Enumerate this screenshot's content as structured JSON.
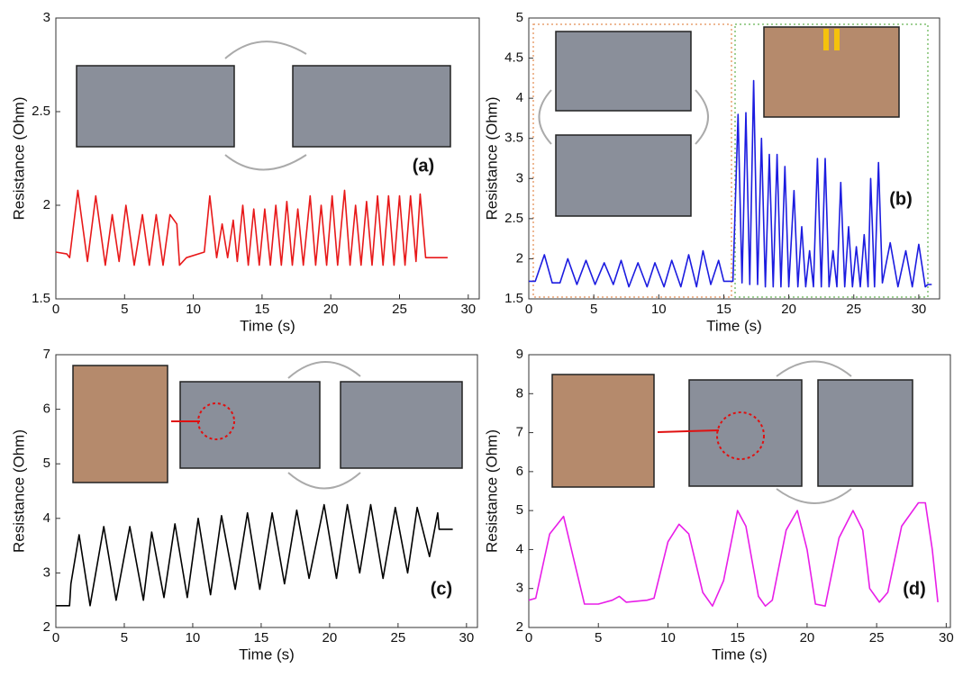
{
  "chart_data": [
    {
      "type": "line",
      "x_label": "Time (s)",
      "y_label": "Resistance (Ohm)",
      "annotation": "(a)",
      "grid": false,
      "xlim": [
        0,
        30.8
      ],
      "xticks": [
        0,
        5,
        10,
        15,
        20,
        25,
        30
      ],
      "ylim": [
        1.5,
        3
      ],
      "yticks": [
        1.5,
        2,
        2.5,
        3
      ],
      "series": [
        {
          "color": "#e8191a",
          "x": [
            0,
            0.8,
            1.0,
            1.6,
            2.3,
            2.9,
            3.6,
            4.1,
            4.6,
            5.1,
            5.7,
            6.3,
            6.8,
            7.3,
            7.8,
            8.3,
            8.8,
            9.0,
            9.5,
            10.8,
            11.2,
            11.7,
            12.1,
            12.5,
            12.9,
            13.2,
            13.6,
            14.0,
            14.4,
            14.8,
            15.2,
            15.6,
            16.0,
            16.4,
            16.8,
            17.2,
            17.6,
            18.0,
            18.5,
            18.9,
            19.3,
            19.7,
            20.1,
            20.5,
            21.0,
            21.4,
            21.8,
            22.2,
            22.6,
            23.0,
            23.4,
            23.8,
            24.2,
            24.6,
            25.0,
            25.4,
            25.8,
            26.2,
            26.5,
            26.9,
            27.5,
            28.5
          ],
          "values": [
            1.75,
            1.74,
            1.72,
            2.08,
            1.7,
            2.05,
            1.68,
            1.95,
            1.7,
            2.0,
            1.68,
            1.95,
            1.68,
            1.95,
            1.68,
            1.95,
            1.9,
            1.68,
            1.72,
            1.75,
            2.05,
            1.72,
            1.9,
            1.72,
            1.92,
            1.7,
            2.0,
            1.68,
            1.98,
            1.68,
            1.98,
            1.68,
            2.0,
            1.68,
            2.02,
            1.68,
            1.98,
            1.68,
            2.05,
            1.68,
            2.0,
            1.68,
            2.05,
            1.68,
            2.08,
            1.68,
            2.0,
            1.68,
            2.02,
            1.68,
            2.05,
            1.68,
            2.05,
            1.68,
            2.05,
            1.68,
            2.05,
            1.7,
            2.06,
            1.72,
            1.72,
            1.72
          ]
        }
      ]
    },
    {
      "type": "line",
      "x_label": "Time (s)",
      "y_label": "Resistance (Ohm)",
      "annotation": "(b)",
      "grid": false,
      "xlim": [
        0,
        31.6
      ],
      "xticks": [
        0,
        5,
        10,
        15,
        20,
        25,
        30
      ],
      "ylim": [
        1.5,
        5
      ],
      "yticks": [
        1.5,
        2,
        2.5,
        3,
        3.5,
        4,
        4.5,
        5
      ],
      "series": [
        {
          "color": "#1c1ce0",
          "x": [
            0,
            0.5,
            1.2,
            1.8,
            2.4,
            3.0,
            3.7,
            4.4,
            5.1,
            5.8,
            6.5,
            7.1,
            7.7,
            8.4,
            9.1,
            9.7,
            10.4,
            11.0,
            11.7,
            12.3,
            12.9,
            13.4,
            14.0,
            14.6,
            15.0,
            15.7,
            16.1,
            16.4,
            16.7,
            17.0,
            17.3,
            17.6,
            17.9,
            18.2,
            18.5,
            18.8,
            19.1,
            19.4,
            19.7,
            20.0,
            20.4,
            20.7,
            21.0,
            21.3,
            21.6,
            21.9,
            22.2,
            22.5,
            22.8,
            23.1,
            23.4,
            23.7,
            24.0,
            24.3,
            24.6,
            24.9,
            25.2,
            25.5,
            25.8,
            26.1,
            26.3,
            26.6,
            26.9,
            27.2,
            27.8,
            28.4,
            29.0,
            29.5,
            30.0,
            30.5,
            30.7,
            31.0
          ],
          "values": [
            1.72,
            1.72,
            2.05,
            1.7,
            1.7,
            2.0,
            1.68,
            1.98,
            1.68,
            1.95,
            1.68,
            1.98,
            1.65,
            1.95,
            1.65,
            1.95,
            1.65,
            1.98,
            1.65,
            2.05,
            1.65,
            2.1,
            1.68,
            1.98,
            1.72,
            1.72,
            3.8,
            1.7,
            3.82,
            1.68,
            4.22,
            1.68,
            3.5,
            1.65,
            3.3,
            1.65,
            3.3,
            1.65,
            3.15,
            1.65,
            2.85,
            1.65,
            2.4,
            1.65,
            2.1,
            1.65,
            3.25,
            1.65,
            3.25,
            1.65,
            2.1,
            1.65,
            2.95,
            1.65,
            2.4,
            1.65,
            2.15,
            1.65,
            2.3,
            1.65,
            3.0,
            1.65,
            3.2,
            1.7,
            2.2,
            1.65,
            2.1,
            1.65,
            2.18,
            1.65,
            1.68,
            1.68
          ]
        }
      ]
    },
    {
      "type": "line",
      "x_label": "Time (s)",
      "y_label": "Resistance (Ohm)",
      "annotation": "(c)",
      "grid": false,
      "xlim": [
        0,
        30.8
      ],
      "xticks": [
        0,
        5,
        10,
        15,
        20,
        25,
        30
      ],
      "ylim": [
        2,
        7
      ],
      "yticks": [
        2,
        3,
        4,
        5,
        6,
        7
      ],
      "series": [
        {
          "color": "#000000",
          "x": [
            0,
            1.0,
            1.1,
            1.7,
            2.5,
            3.5,
            4.4,
            5.4,
            6.4,
            7.0,
            7.9,
            8.7,
            9.6,
            10.4,
            11.3,
            12.1,
            13.1,
            14.0,
            14.9,
            15.8,
            16.7,
            17.6,
            18.5,
            19.6,
            20.5,
            21.3,
            22.2,
            23.0,
            23.9,
            24.8,
            25.7,
            26.4,
            27.3,
            27.9,
            28.0,
            29.0
          ],
          "values": [
            2.4,
            2.4,
            2.8,
            3.7,
            2.4,
            3.85,
            2.5,
            3.85,
            2.5,
            3.75,
            2.55,
            3.9,
            2.55,
            4.0,
            2.6,
            4.05,
            2.7,
            4.1,
            2.7,
            4.1,
            2.8,
            4.15,
            2.9,
            4.25,
            2.9,
            4.25,
            3.0,
            4.25,
            2.9,
            4.2,
            3.0,
            4.2,
            3.3,
            4.1,
            3.8,
            3.8
          ]
        }
      ]
    },
    {
      "type": "line",
      "x_label": "Time (s)",
      "y_label": "Resistance (Ohm)",
      "annotation": "(d)",
      "grid": false,
      "xlim": [
        0,
        30.3
      ],
      "xticks": [
        0,
        5,
        10,
        15,
        20,
        25,
        30
      ],
      "ylim": [
        2,
        9
      ],
      "yticks": [
        2,
        3,
        4,
        5,
        6,
        7,
        8,
        9
      ],
      "series": [
        {
          "color": "#e81ee8",
          "x": [
            0,
            0.5,
            1.5,
            2.5,
            3.2,
            4.0,
            5.0,
            6.0,
            6.5,
            7.0,
            8.5,
            9.0,
            10.0,
            10.8,
            11.5,
            12.5,
            13.2,
            14.0,
            15.0,
            15.6,
            16.5,
            17.0,
            17.5,
            18.5,
            19.3,
            20.0,
            20.6,
            21.3,
            22.3,
            23.3,
            24.0,
            24.5,
            25.2,
            25.8,
            26.8,
            28.0,
            28.5,
            29.0,
            29.4
          ],
          "values": [
            2.7,
            2.75,
            4.4,
            4.85,
            3.8,
            2.6,
            2.6,
            2.7,
            2.8,
            2.65,
            2.7,
            2.75,
            4.2,
            4.65,
            4.4,
            2.9,
            2.55,
            3.2,
            5.0,
            4.6,
            2.8,
            2.55,
            2.7,
            4.5,
            5.0,
            4.0,
            2.6,
            2.55,
            4.3,
            5.0,
            4.5,
            3.0,
            2.65,
            2.9,
            4.6,
            5.2,
            5.2,
            4.0,
            2.65
          ]
        }
      ]
    }
  ]
}
